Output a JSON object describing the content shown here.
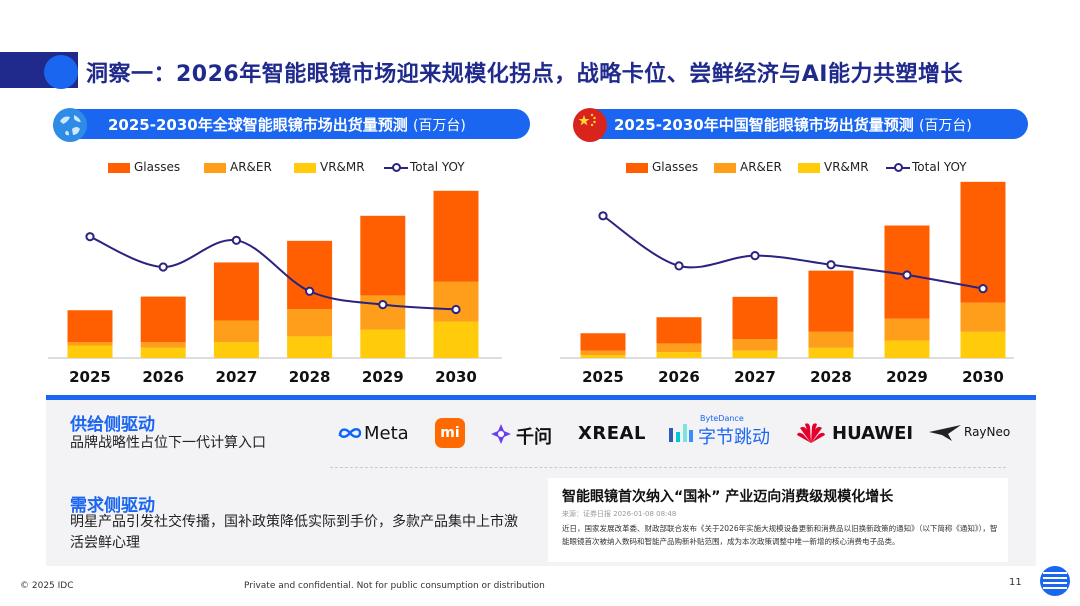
{
  "page_title": "洞察一：2026年智能眼镜市场迎来规模化拐点，战略卡位、尝鲜经济与AI能力共塑增长",
  "legend": {
    "glasses": "Glasses",
    "ar": "AR&ER",
    "vr": "VR&MR",
    "yoy": "Total YOY"
  },
  "colors": {
    "glasses": "#ff5f00",
    "ar": "#ff9e1b",
    "vr": "#ffcb0a",
    "yoy": "#2a2380",
    "accent": "#1a66f0"
  },
  "chart_data": [
    {
      "type": "bar",
      "title": "2025-2030年全球智能眼镜市场出货量预测",
      "unit": "(百万台)",
      "categories": [
        "2025",
        "2026",
        "2027",
        "2028",
        "2029",
        "2030"
      ],
      "series": [
        {
          "name": "Glasses",
          "values": [
            2.8,
            4.0,
            5.1,
            6.0,
            7.0,
            8.0
          ]
        },
        {
          "name": "AR&ER",
          "values": [
            0.3,
            0.5,
            1.9,
            2.4,
            3.0,
            3.5
          ]
        },
        {
          "name": "VR&MR",
          "values": [
            1.1,
            0.9,
            1.4,
            1.9,
            2.5,
            3.2
          ]
        }
      ],
      "yoy_line": {
        "name": "Total YOY",
        "values": [
          100,
          75,
          97,
          55,
          44,
          40
        ]
      },
      "ylim": [
        0,
        16
      ],
      "yoy_lim": [
        0,
        150
      ]
    },
    {
      "type": "bar",
      "title": "2025-2030年中国智能眼镜市场出货量预测",
      "unit": "(百万台)",
      "categories": [
        "2025",
        "2026",
        "2027",
        "2028",
        "2029",
        "2030"
      ],
      "series": [
        {
          "name": "Glasses",
          "values": [
            1.2,
            1.8,
            2.9,
            4.2,
            6.4,
            8.3
          ]
        },
        {
          "name": "AR&ER",
          "values": [
            0.3,
            0.6,
            0.8,
            1.1,
            1.5,
            2.0
          ]
        },
        {
          "name": "VR&MR",
          "values": [
            0.2,
            0.4,
            0.5,
            0.7,
            1.2,
            1.8
          ]
        }
      ],
      "yoy_line": {
        "name": "Total YOY",
        "values": [
          125,
          81,
          90,
          82,
          73,
          61
        ]
      },
      "ylim": [
        0,
        12.5
      ],
      "yoy_lim": [
        0,
        160
      ]
    }
  ],
  "supply": {
    "title": "供给侧驱动",
    "desc": "品牌战略性占位下一代计算入口"
  },
  "demand": {
    "title": "需求侧驱动",
    "desc": "明星产品引发社交传播，国补政策降低实际到手价，多款产品集中上市激活尝鲜心理"
  },
  "brands": {
    "meta": "Meta",
    "xiaomi": "mi",
    "qianwen": "千问",
    "xreal": "XREAL",
    "bytedance_small": "ByteDance",
    "bytedance": "字节跳动",
    "huawei": "HUAWEI",
    "rayneo": "RayNeo"
  },
  "news": {
    "title": "智能眼镜首次纳入“国补” 产业迈向消费级规模化增长",
    "meta": "来源：证券日报      2026-01-08 08:48",
    "body": "近日，国家发展改革委、财政部联合发布《关于2026年实施大规模设备更新和消费品以旧换新政策的通知》（以下简称《通知》），智能眼镜首次被纳入数码和智能产品购新补贴范围，成为本次政策调整中唯一新增的核心消费电子品类。"
  },
  "footer": {
    "copyright": "© 2025 IDC",
    "notice": "Private and confidential. Not for public consumption or distribution",
    "page": "11"
  }
}
